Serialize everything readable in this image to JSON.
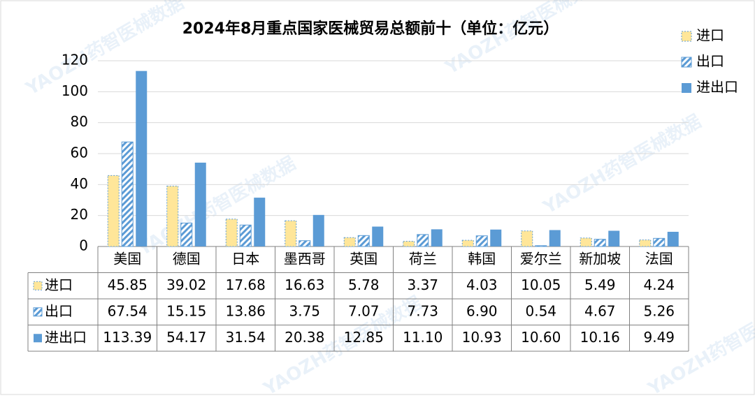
{
  "chart_data": {
    "type": "bar",
    "title": "2024年8月重点国家医械贸易总额前十（单位：亿元）",
    "watermark": "YAOZH药智医械数据",
    "categories": [
      "美国",
      "德国",
      "日本",
      "墨西哥",
      "英国",
      "荷兰",
      "韩国",
      "爱尔兰",
      "新加坡",
      "法国"
    ],
    "series": [
      {
        "name": "进口",
        "color": "#ffe699",
        "values": [
          45.85,
          39.02,
          17.68,
          16.63,
          5.78,
          3.37,
          4.03,
          10.05,
          5.49,
          4.24
        ],
        "value_labels": [
          "45.85",
          "39.02",
          "17.68",
          "16.63",
          "5.78",
          "3.37",
          "4.03",
          "10.05",
          "5.49",
          "4.24"
        ]
      },
      {
        "name": "出口",
        "color": "#5b9bd5",
        "values": [
          67.54,
          15.15,
          13.86,
          3.75,
          7.07,
          7.73,
          6.9,
          0.54,
          4.67,
          5.26
        ],
        "value_labels": [
          "67.54",
          "15.15",
          "13.86",
          "3.75",
          "7.07",
          "7.73",
          "6.90",
          "0.54",
          "4.67",
          "5.26"
        ]
      },
      {
        "name": "进出口",
        "color": "#5b9bd5",
        "values": [
          113.39,
          54.17,
          31.54,
          20.38,
          12.85,
          11.1,
          10.93,
          10.6,
          10.16,
          9.49
        ],
        "value_labels": [
          "113.39",
          "54.17",
          "31.54",
          "20.38",
          "12.85",
          "11.10",
          "10.93",
          "10.60",
          "10.16",
          "9.49"
        ]
      }
    ],
    "ylim": [
      0,
      120
    ],
    "yticks": [
      0,
      20,
      40,
      60,
      80,
      100,
      120
    ],
    "grid": true
  }
}
